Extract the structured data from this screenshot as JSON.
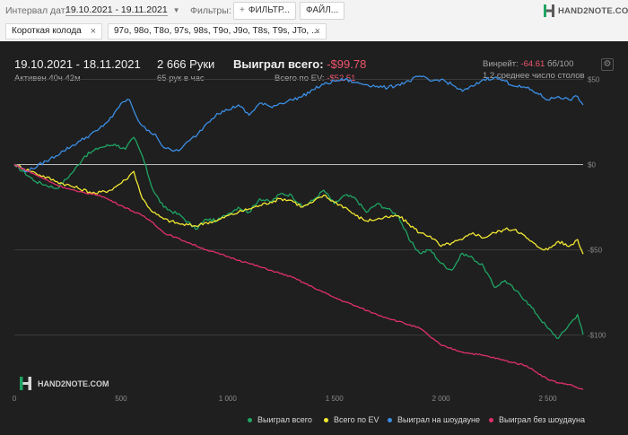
{
  "toolbar": {
    "date_label": "Интервал дат:",
    "date_value": "19.10.2021 - 19.11.2021",
    "filters_label": "Фильтры:",
    "filter_button": "ФИЛЬТР...",
    "file_button": "ФАЙЛ...",
    "brand": "HAND2NOTE.COM"
  },
  "tabs": [
    {
      "label": "Короткая колода"
    },
    {
      "label": "97o, 98o, T8o, 97s, 98s, T9o, J9o, T8s, T9s, JTo, ..."
    }
  ],
  "summary": {
    "date_range": "19.10.2021 - 18.11.2021",
    "active": "Активен 40ч 42м",
    "hands": "2 666 Руки",
    "hands_per_hour": "65 рук в час",
    "won_label": "Выиграл всего:",
    "won_value": "-$99.78",
    "ev_label": "Всего по EV:",
    "ev_value": "-$52.51",
    "winrate_label": "Винрейт:",
    "winrate_value": "-64.61",
    "winrate_unit": "бб/100",
    "tables": "1.2 среднее число столов"
  },
  "watermark": "HAND2NOTE.COM",
  "colors": {
    "won": "#1fa463",
    "ev": "#f2e832",
    "showdown": "#3b8ee3",
    "nonshowdown": "#e0306a",
    "negative": "#f0566e"
  },
  "chart_data": {
    "type": "line",
    "x_ticks": [
      0,
      500,
      1000,
      1500,
      2000,
      2500
    ],
    "x_tick_labels": [
      "0",
      "500",
      "1 000",
      "1 500",
      "2 000",
      "2 500"
    ],
    "y_ticks": [
      50,
      0,
      -50,
      -100
    ],
    "y_tick_labels": [
      "$50",
      "$0",
      "-$50",
      "-$100"
    ],
    "xlim": [
      0,
      2666
    ],
    "ylim": [
      -135,
      65
    ],
    "grid": true,
    "legend_position": "bottom-right",
    "series": [
      {
        "name": "Выиграл всего",
        "color": "#1fa463",
        "x": [
          0,
          100,
          200,
          270,
          330,
          400,
          470,
          520,
          560,
          600,
          650,
          700,
          780,
          850,
          900,
          950,
          1000,
          1050,
          1100,
          1150,
          1200,
          1250,
          1300,
          1350,
          1400,
          1450,
          1500,
          1550,
          1600,
          1650,
          1700,
          1750,
          1800,
          1850,
          1900,
          1950,
          2000,
          2050,
          2100,
          2150,
          2200,
          2250,
          2300,
          2350,
          2400,
          2450,
          2500,
          2550,
          2600,
          2640,
          2666
        ],
        "y": [
          0,
          -10,
          -14,
          -5,
          5,
          10,
          12,
          9,
          16,
          5,
          -15,
          -25,
          -30,
          -38,
          -32,
          -33,
          -29,
          -25,
          -28,
          -20,
          -22,
          -17,
          -18,
          -25,
          -21,
          -15,
          -23,
          -18,
          -20,
          -28,
          -23,
          -26,
          -30,
          -44,
          -52,
          -50,
          -58,
          -62,
          -52,
          -55,
          -60,
          -72,
          -68,
          -74,
          -80,
          -88,
          -96,
          -102,
          -94,
          -88,
          -99.78
        ]
      },
      {
        "name": "Всего по EV",
        "color": "#f2e832",
        "x": [
          0,
          100,
          200,
          300,
          380,
          450,
          520,
          560,
          600,
          650,
          700,
          780,
          850,
          900,
          950,
          1000,
          1050,
          1100,
          1150,
          1200,
          1250,
          1300,
          1350,
          1400,
          1450,
          1500,
          1550,
          1600,
          1650,
          1700,
          1750,
          1800,
          1850,
          1900,
          1950,
          2000,
          2050,
          2100,
          2150,
          2200,
          2250,
          2300,
          2350,
          2400,
          2450,
          2500,
          2550,
          2600,
          2640,
          2666
        ],
        "y": [
          0,
          -5,
          -10,
          -14,
          -17,
          -15,
          -9,
          -4,
          -20,
          -28,
          -32,
          -35,
          -36,
          -34,
          -33,
          -30,
          -28,
          -26,
          -24,
          -22,
          -20,
          -21,
          -25,
          -22,
          -18,
          -22,
          -25,
          -30,
          -33,
          -32,
          -31,
          -30,
          -35,
          -40,
          -42,
          -48,
          -46,
          -44,
          -40,
          -43,
          -40,
          -38,
          -38,
          -43,
          -48,
          -50,
          -45,
          -48,
          -44,
          -52.51
        ]
      },
      {
        "name": "Выиграл на шоудауне",
        "color": "#3b8ee3",
        "x": [
          0,
          60,
          150,
          230,
          310,
          390,
          460,
          500,
          540,
          580,
          620,
          660,
          700,
          740,
          780,
          820,
          860,
          900,
          950,
          1000,
          1050,
          1100,
          1150,
          1200,
          1250,
          1300,
          1350,
          1400,
          1450,
          1500,
          1550,
          1600,
          1650,
          1700,
          1750,
          1800,
          1850,
          1900,
          1950,
          2000,
          2050,
          2100,
          2150,
          2200,
          2250,
          2300,
          2350,
          2400,
          2450,
          2500,
          2550,
          2600,
          2640,
          2666
        ],
        "y": [
          0,
          -4,
          2,
          8,
          14,
          20,
          28,
          36,
          38,
          26,
          20,
          18,
          10,
          8,
          9,
          14,
          18,
          24,
          30,
          32,
          35,
          29,
          36,
          34,
          36,
          38,
          40,
          44,
          47,
          49,
          50,
          48,
          47,
          46,
          45,
          47,
          49,
          52,
          49,
          50,
          47,
          43,
          46,
          50,
          51,
          49,
          46,
          45,
          42,
          38,
          40,
          38,
          40,
          35
        ]
      },
      {
        "name": "Выиграл без шоудауна",
        "color": "#e0306a",
        "x": [
          0,
          100,
          200,
          300,
          400,
          500,
          600,
          650,
          700,
          800,
          900,
          1000,
          1100,
          1200,
          1300,
          1400,
          1500,
          1600,
          1700,
          1800,
          1900,
          2000,
          2100,
          2200,
          2300,
          2400,
          2450,
          2500,
          2550,
          2600,
          2640,
          2666
        ],
        "y": [
          0,
          -6,
          -12,
          -16,
          -18,
          -24,
          -30,
          -34,
          -40,
          -45,
          -50,
          -54,
          -58,
          -62,
          -66,
          -72,
          -78,
          -83,
          -88,
          -92,
          -96,
          -106,
          -110,
          -112,
          -115,
          -118,
          -122,
          -126,
          -128,
          -129,
          -131,
          -132
        ]
      }
    ]
  }
}
